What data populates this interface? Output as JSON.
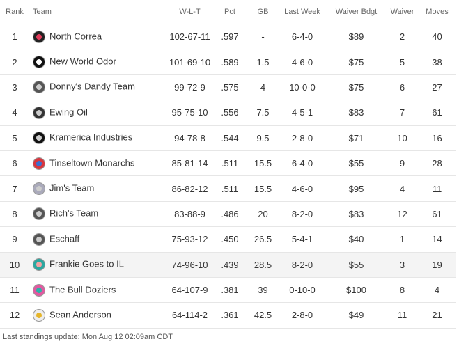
{
  "table": {
    "headers": [
      "Rank",
      "Team",
      "W-L-T",
      "Pct",
      "GB",
      "Last Week",
      "Waiver Bdgt",
      "Waiver",
      "Moves"
    ],
    "rows": [
      [
        "1",
        "North Correa",
        "102-67-11",
        ".597",
        "-",
        "6-4-0",
        "$89",
        "2",
        "40"
      ],
      [
        "2",
        "New World Odor",
        "101-69-10",
        ".589",
        "1.5",
        "4-6-0",
        "$75",
        "5",
        "38"
      ],
      [
        "3",
        "Donny's Dandy Team",
        "99-72-9",
        ".575",
        "4",
        "10-0-0",
        "$75",
        "6",
        "27"
      ],
      [
        "4",
        "Ewing Oil",
        "95-75-10",
        ".556",
        "7.5",
        "4-5-1",
        "$83",
        "7",
        "61"
      ],
      [
        "5",
        "Kramerica Industries",
        "94-78-8",
        ".544",
        "9.5",
        "2-8-0",
        "$71",
        "10",
        "16"
      ],
      [
        "6",
        "Tinseltown Monarchs",
        "85-81-14",
        ".511",
        "15.5",
        "6-4-0",
        "$55",
        "9",
        "28"
      ],
      [
        "7",
        "Jim's Team",
        "86-82-12",
        ".511",
        "15.5",
        "4-6-0",
        "$95",
        "4",
        "11"
      ],
      [
        "8",
        "Rich's Team",
        "83-88-9",
        ".486",
        "20",
        "8-2-0",
        "$83",
        "12",
        "61"
      ],
      [
        "9",
        "Eschaff",
        "75-93-12",
        ".450",
        "26.5",
        "5-4-1",
        "$40",
        "1",
        "14"
      ],
      [
        "10",
        "Frankie Goes to IL",
        "74-96-10",
        ".439",
        "28.5",
        "8-2-0",
        "$55",
        "3",
        "19"
      ],
      [
        "11",
        "The Bull Doziers",
        "64-107-9",
        ".381",
        "39",
        "0-10-0",
        "$100",
        "8",
        "4"
      ],
      [
        "12",
        "Sean Anderson",
        "64-114-2",
        ".361",
        "42.5",
        "2-8-0",
        "$49",
        "11",
        "21"
      ]
    ]
  },
  "footer": "Last standings update: Mon Aug 12 02:09am CDT"
}
